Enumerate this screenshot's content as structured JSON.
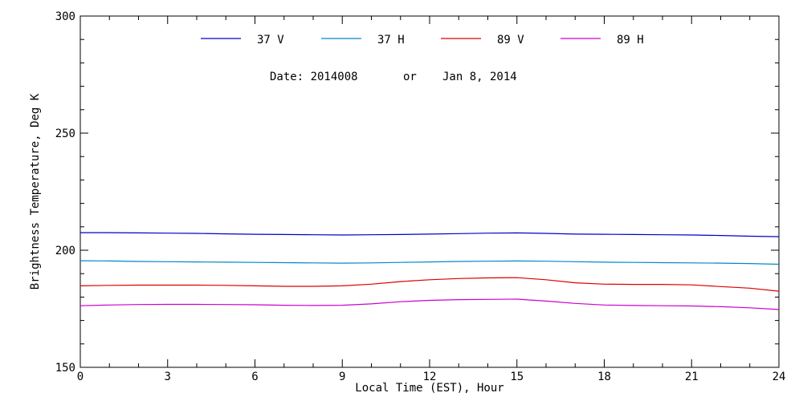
{
  "chart_data": {
    "type": "line",
    "title": "",
    "xlabel": "Local Time (EST), Hour",
    "ylabel": "Brightness Temperature, Deg K",
    "xlim": [
      0,
      24
    ],
    "ylim": [
      150,
      300
    ],
    "xticks": [
      0,
      3,
      6,
      9,
      12,
      15,
      18,
      21,
      24
    ],
    "yticks": [
      150,
      200,
      250,
      300
    ],
    "x_minor_step": 1,
    "y_minor_step": 10,
    "grid": false,
    "legend_position": "top",
    "annotation": {
      "date_label": "Date: 2014008",
      "or_label": "or",
      "date_text": "Jan  8, 2014"
    },
    "x": [
      0,
      1,
      2,
      3,
      4,
      5,
      6,
      7,
      8,
      9,
      10,
      11,
      12,
      13,
      14,
      15,
      16,
      17,
      18,
      19,
      20,
      21,
      22,
      23,
      24
    ],
    "series": [
      {
        "name": "37 V",
        "color": "#0000cc",
        "values": [
          207.5,
          207.5,
          207.4,
          207.3,
          207.2,
          207.0,
          206.8,
          206.7,
          206.6,
          206.5,
          206.6,
          206.7,
          206.9,
          207.1,
          207.3,
          207.4,
          207.2,
          206.9,
          206.8,
          206.7,
          206.6,
          206.5,
          206.3,
          206.0,
          205.8
        ]
      },
      {
        "name": "37 H",
        "color": "#0088cc",
        "values": [
          195.5,
          195.4,
          195.2,
          195.1,
          195.0,
          194.9,
          194.8,
          194.7,
          194.6,
          194.5,
          194.6,
          194.8,
          195.0,
          195.2,
          195.3,
          195.4,
          195.3,
          195.1,
          194.9,
          194.8,
          194.7,
          194.6,
          194.5,
          194.3,
          194.0
        ]
      },
      {
        "name": "89 V",
        "color": "#dd0000",
        "values": [
          184.8,
          185.0,
          185.1,
          185.1,
          185.1,
          185.0,
          184.8,
          184.6,
          184.6,
          184.8,
          185.5,
          186.6,
          187.4,
          187.9,
          188.2,
          188.3,
          187.4,
          186.1,
          185.5,
          185.4,
          185.4,
          185.2,
          184.5,
          183.8,
          182.5
        ]
      },
      {
        "name": "89 H",
        "color": "#cc00cc",
        "values": [
          176.3,
          176.6,
          176.8,
          176.9,
          176.9,
          176.8,
          176.7,
          176.5,
          176.4,
          176.5,
          177.1,
          178.0,
          178.6,
          178.9,
          179.0,
          179.1,
          178.3,
          177.3,
          176.6,
          176.4,
          176.3,
          176.2,
          175.9,
          175.4,
          174.7
        ]
      }
    ]
  }
}
